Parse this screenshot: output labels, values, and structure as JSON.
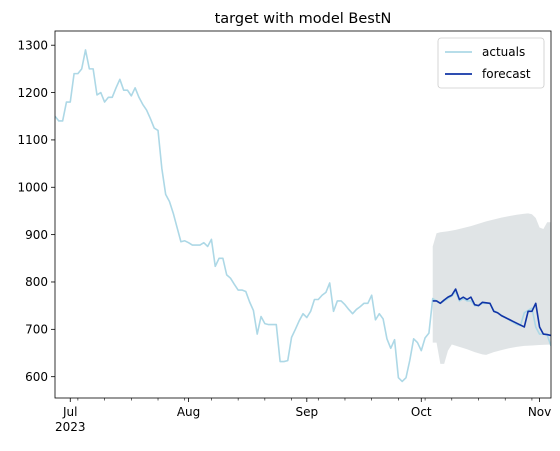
{
  "chart_data": {
    "type": "line",
    "title": "target with model BestN",
    "xlabel": "",
    "ylabel": "",
    "x_ticks": [
      "Jul",
      "Aug",
      "Sep",
      "Oct",
      "Nov"
    ],
    "x_tick_dates": [
      "2023-07-01",
      "2023-08-01",
      "2023-09-01",
      "2023-10-01",
      "2023-11-01"
    ],
    "x_year_label": "2023",
    "y_ticks": [
      600,
      700,
      800,
      900,
      1000,
      1100,
      1200,
      1300
    ],
    "xlim": [
      "2023-06-27",
      "2023-11-04"
    ],
    "ylim": [
      555,
      1330
    ],
    "grid": false,
    "legend_position": "top-right",
    "series": [
      {
        "name": "actuals",
        "color": "#add8e6",
        "points": [
          [
            "2023-06-27",
            1150
          ],
          [
            "2023-06-28",
            1140
          ],
          [
            "2023-06-29",
            1140
          ],
          [
            "2023-06-30",
            1180
          ],
          [
            "2023-07-01",
            1180
          ],
          [
            "2023-07-02",
            1240
          ],
          [
            "2023-07-03",
            1240
          ],
          [
            "2023-07-04",
            1250
          ],
          [
            "2023-07-05",
            1290
          ],
          [
            "2023-07-06",
            1250
          ],
          [
            "2023-07-07",
            1250
          ],
          [
            "2023-07-08",
            1195
          ],
          [
            "2023-07-09",
            1200
          ],
          [
            "2023-07-10",
            1180
          ],
          [
            "2023-07-11",
            1190
          ],
          [
            "2023-07-12",
            1190
          ],
          [
            "2023-07-13",
            1210
          ],
          [
            "2023-07-14",
            1228
          ],
          [
            "2023-07-15",
            1205
          ],
          [
            "2023-07-16",
            1205
          ],
          [
            "2023-07-17",
            1193
          ],
          [
            "2023-07-18",
            1210
          ],
          [
            "2023-07-19",
            1190
          ],
          [
            "2023-07-20",
            1175
          ],
          [
            "2023-07-21",
            1163
          ],
          [
            "2023-07-22",
            1145
          ],
          [
            "2023-07-23",
            1125
          ],
          [
            "2023-07-24",
            1120
          ],
          [
            "2023-07-25",
            1040
          ],
          [
            "2023-07-26",
            985
          ],
          [
            "2023-07-27",
            970
          ],
          [
            "2023-07-28",
            945
          ],
          [
            "2023-07-29",
            915
          ],
          [
            "2023-07-30",
            885
          ],
          [
            "2023-07-31",
            887
          ],
          [
            "2023-08-01",
            883
          ],
          [
            "2023-08-02",
            878
          ],
          [
            "2023-08-03",
            878
          ],
          [
            "2023-08-04",
            878
          ],
          [
            "2023-08-05",
            883
          ],
          [
            "2023-08-06",
            875
          ],
          [
            "2023-08-07",
            890
          ],
          [
            "2023-08-08",
            833
          ],
          [
            "2023-08-09",
            850
          ],
          [
            "2023-08-10",
            850
          ],
          [
            "2023-08-11",
            815
          ],
          [
            "2023-08-12",
            808
          ],
          [
            "2023-08-13",
            795
          ],
          [
            "2023-08-14",
            783
          ],
          [
            "2023-08-15",
            783
          ],
          [
            "2023-08-16",
            780
          ],
          [
            "2023-08-17",
            758
          ],
          [
            "2023-08-18",
            740
          ],
          [
            "2023-08-19",
            690
          ],
          [
            "2023-08-20",
            727
          ],
          [
            "2023-08-21",
            712
          ],
          [
            "2023-08-22",
            710
          ],
          [
            "2023-08-23",
            710
          ],
          [
            "2023-08-24",
            710
          ],
          [
            "2023-08-25",
            632
          ],
          [
            "2023-08-26",
            632
          ],
          [
            "2023-08-27",
            634
          ],
          [
            "2023-08-28",
            683
          ],
          [
            "2023-08-29",
            700
          ],
          [
            "2023-08-30",
            718
          ],
          [
            "2023-08-31",
            733
          ],
          [
            "2023-09-01",
            725
          ],
          [
            "2023-09-02",
            738
          ],
          [
            "2023-09-03",
            763
          ],
          [
            "2023-09-04",
            763
          ],
          [
            "2023-09-05",
            772
          ],
          [
            "2023-09-06",
            778
          ],
          [
            "2023-09-07",
            798
          ],
          [
            "2023-09-08",
            738
          ],
          [
            "2023-09-09",
            760
          ],
          [
            "2023-09-10",
            760
          ],
          [
            "2023-09-11",
            752
          ],
          [
            "2023-09-12",
            742
          ],
          [
            "2023-09-13",
            733
          ],
          [
            "2023-09-14",
            742
          ],
          [
            "2023-09-15",
            748
          ],
          [
            "2023-09-16",
            755
          ],
          [
            "2023-09-17",
            755
          ],
          [
            "2023-09-18",
            772
          ],
          [
            "2023-09-19",
            720
          ],
          [
            "2023-09-20",
            733
          ],
          [
            "2023-09-21",
            722
          ],
          [
            "2023-09-22",
            680
          ],
          [
            "2023-09-23",
            660
          ],
          [
            "2023-09-24",
            678
          ],
          [
            "2023-09-25",
            598
          ],
          [
            "2023-09-26",
            590
          ],
          [
            "2023-09-27",
            598
          ],
          [
            "2023-09-28",
            635
          ],
          [
            "2023-09-29",
            680
          ],
          [
            "2023-09-30",
            672
          ],
          [
            "2023-10-01",
            655
          ],
          [
            "2023-10-02",
            682
          ],
          [
            "2023-10-03",
            692
          ],
          [
            "2023-10-04",
            765
          ],
          [
            "2023-10-05",
            760
          ],
          [
            "2023-10-06",
            755
          ],
          [
            "2023-10-07",
            760
          ],
          [
            "2023-10-08",
            765
          ],
          [
            "2023-10-09",
            770
          ],
          [
            "2023-10-10",
            780
          ],
          [
            "2023-10-11",
            760
          ],
          [
            "2023-10-12",
            765
          ],
          [
            "2023-10-13",
            760
          ],
          [
            "2023-10-14",
            760
          ],
          [
            "2023-10-15",
            750
          ],
          [
            "2023-10-16",
            750
          ],
          [
            "2023-10-17",
            755
          ],
          [
            "2023-10-18",
            755
          ],
          [
            "2023-10-19",
            755
          ],
          [
            "2023-10-20",
            740
          ],
          [
            "2023-10-21",
            735
          ],
          [
            "2023-10-22",
            730
          ],
          [
            "2023-10-23",
            725
          ],
          [
            "2023-10-24",
            720
          ],
          [
            "2023-10-25",
            715
          ],
          [
            "2023-10-26",
            710
          ],
          [
            "2023-10-27",
            708
          ],
          [
            "2023-10-28",
            735
          ],
          [
            "2023-10-29",
            740
          ],
          [
            "2023-10-30",
            745
          ],
          [
            "2023-10-31",
            705
          ],
          [
            "2023-11-01",
            690
          ],
          [
            "2023-11-02",
            690
          ],
          [
            "2023-11-03",
            688
          ],
          [
            "2023-11-04",
            665
          ]
        ]
      },
      {
        "name": "forecast",
        "color": "#1034a6",
        "points": [
          [
            "2023-10-04",
            760
          ],
          [
            "2023-10-05",
            760
          ],
          [
            "2023-10-06",
            755
          ],
          [
            "2023-10-07",
            762
          ],
          [
            "2023-10-08",
            768
          ],
          [
            "2023-10-09",
            772
          ],
          [
            "2023-10-10",
            785
          ],
          [
            "2023-10-11",
            763
          ],
          [
            "2023-10-12",
            768
          ],
          [
            "2023-10-13",
            763
          ],
          [
            "2023-10-14",
            768
          ],
          [
            "2023-10-15",
            752
          ],
          [
            "2023-10-16",
            750
          ],
          [
            "2023-10-17",
            757
          ],
          [
            "2023-10-18",
            756
          ],
          [
            "2023-10-19",
            755
          ],
          [
            "2023-10-20",
            738
          ],
          [
            "2023-10-21",
            735
          ],
          [
            "2023-10-22",
            729
          ],
          [
            "2023-10-23",
            725
          ],
          [
            "2023-10-24",
            721
          ],
          [
            "2023-10-25",
            717
          ],
          [
            "2023-10-26",
            713
          ],
          [
            "2023-10-27",
            709
          ],
          [
            "2023-10-28",
            705
          ],
          [
            "2023-10-29",
            738
          ],
          [
            "2023-10-30",
            738
          ],
          [
            "2023-10-31",
            755
          ],
          [
            "2023-11-01",
            705
          ],
          [
            "2023-11-02",
            690
          ],
          [
            "2023-11-03",
            689
          ],
          [
            "2023-11-04",
            687
          ]
        ]
      }
    ],
    "confidence_band": {
      "color": "#d3d8db",
      "upper": [
        [
          "2023-10-04",
          875
        ],
        [
          "2023-10-05",
          903
        ],
        [
          "2023-10-06",
          905
        ],
        [
          "2023-10-08",
          907
        ],
        [
          "2023-10-10",
          910
        ],
        [
          "2023-10-12",
          914
        ],
        [
          "2023-10-14",
          918
        ],
        [
          "2023-10-16",
          923
        ],
        [
          "2023-10-18",
          928
        ],
        [
          "2023-10-20",
          932
        ],
        [
          "2023-10-22",
          936
        ],
        [
          "2023-10-24",
          939
        ],
        [
          "2023-10-26",
          942
        ],
        [
          "2023-10-28",
          944
        ],
        [
          "2023-10-29",
          945
        ],
        [
          "2023-10-30",
          943
        ],
        [
          "2023-10-31",
          935
        ],
        [
          "2023-11-01",
          915
        ],
        [
          "2023-11-02",
          912
        ],
        [
          "2023-11-03",
          926
        ],
        [
          "2023-11-04",
          926
        ]
      ],
      "lower": [
        [
          "2023-10-04",
          672
        ],
        [
          "2023-10-05",
          672
        ],
        [
          "2023-10-06",
          627
        ],
        [
          "2023-10-07",
          627
        ],
        [
          "2023-10-08",
          655
        ],
        [
          "2023-10-09",
          668
        ],
        [
          "2023-10-11",
          663
        ],
        [
          "2023-10-13",
          658
        ],
        [
          "2023-10-15",
          652
        ],
        [
          "2023-10-17",
          647
        ],
        [
          "2023-10-18",
          646
        ],
        [
          "2023-10-20",
          652
        ],
        [
          "2023-10-22",
          656
        ],
        [
          "2023-10-24",
          660
        ],
        [
          "2023-10-26",
          663
        ],
        [
          "2023-10-28",
          665
        ],
        [
          "2023-10-30",
          666
        ],
        [
          "2023-11-01",
          667
        ],
        [
          "2023-11-04",
          668
        ]
      ]
    }
  }
}
